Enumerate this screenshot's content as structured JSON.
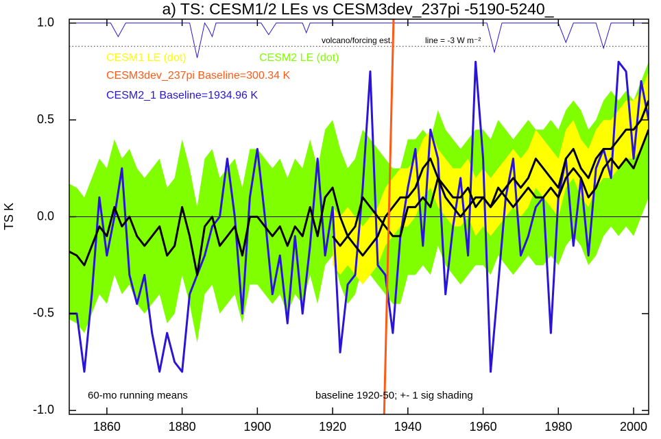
{
  "chart_data": {
    "type": "line",
    "title": "a) TS: CESM1/2 LEs vs CESM3dev_237pi -5190-5240_",
    "y_label": "TS K",
    "legend": "top-left",
    "xlim": [
      1850,
      2004
    ],
    "ylim": [
      -1.02,
      1.02
    ],
    "xticks": [
      1860,
      1880,
      1900,
      1920,
      1940,
      1960,
      1980,
      2000
    ],
    "yticks": [
      {
        "value": 1.0,
        "label": "1.0"
      },
      0.5,
      {
        "value": 0.0,
        "label": "0.0"
      },
      -0.5,
      {
        "value": -1.0,
        "label": "-1.0"
      }
    ],
    "x": [
      1850,
      1852,
      1854,
      1856,
      1858,
      1860,
      1862,
      1864,
      1866,
      1868,
      1870,
      1872,
      1874,
      1876,
      1878,
      1880,
      1882,
      1884,
      1886,
      1888,
      1890,
      1892,
      1894,
      1896,
      1898,
      1900,
      1902,
      1904,
      1906,
      1908,
      1910,
      1912,
      1914,
      1916,
      1918,
      1920,
      1922,
      1924,
      1926,
      1928,
      1930,
      1932,
      1934,
      1936,
      1938,
      1940,
      1942,
      1944,
      1946,
      1948,
      1950,
      1952,
      1954,
      1956,
      1958,
      1960,
      1962,
      1964,
      1966,
      1968,
      1970,
      1972,
      1974,
      1976,
      1978,
      1980,
      1982,
      1984,
      1986,
      1988,
      1990,
      1992,
      1994,
      1996,
      1998,
      2000,
      2002,
      2004
    ],
    "series": [
      {
        "name": "CESM1 LE (dot)",
        "color": "#ffff00",
        "band_color": "#ffff00",
        "x": [
          1920,
          1922,
          1924,
          1926,
          1928,
          1930,
          1932,
          1934,
          1936,
          1938,
          1940,
          1942,
          1944,
          1946,
          1948,
          1950,
          1952,
          1954,
          1956,
          1958,
          1960,
          1962,
          1964,
          1966,
          1968,
          1970,
          1972,
          1974,
          1976,
          1978,
          1980,
          1982,
          1984,
          1986,
          1988,
          1990,
          1992,
          1994,
          1996,
          1998,
          2000,
          2002,
          2004
        ],
        "values": [
          -0.1,
          -0.15,
          -0.1,
          -0.15,
          -0.2,
          -0.15,
          -0.1,
          0.0,
          0.05,
          0.1,
          0.1,
          0.15,
          0.25,
          0.3,
          0.2,
          0.15,
          0.1,
          0.1,
          0.15,
          0.05,
          0.1,
          0.05,
          0.1,
          0.15,
          0.2,
          0.15,
          0.2,
          0.3,
          0.25,
          0.2,
          0.15,
          0.3,
          0.35,
          0.25,
          0.2,
          0.3,
          0.35,
          0.35,
          0.4,
          0.45,
          0.45,
          0.5,
          0.6
        ],
        "upper": [
          0.05,
          0.0,
          0.05,
          0.0,
          -0.05,
          0.0,
          0.05,
          0.15,
          0.2,
          0.25,
          0.25,
          0.3,
          0.4,
          0.45,
          0.35,
          0.3,
          0.25,
          0.25,
          0.3,
          0.2,
          0.25,
          0.2,
          0.25,
          0.3,
          0.35,
          0.3,
          0.35,
          0.45,
          0.4,
          0.35,
          0.3,
          0.45,
          0.5,
          0.4,
          0.35,
          0.45,
          0.5,
          0.5,
          0.55,
          0.6,
          0.6,
          0.65,
          0.75
        ],
        "lower": [
          -0.25,
          -0.3,
          -0.25,
          -0.3,
          -0.35,
          -0.3,
          -0.25,
          -0.15,
          -0.1,
          -0.05,
          -0.05,
          0.0,
          0.1,
          0.15,
          0.05,
          0.0,
          -0.05,
          -0.05,
          0.0,
          -0.1,
          -0.05,
          -0.1,
          -0.05,
          0.0,
          0.05,
          0.0,
          0.05,
          0.15,
          0.1,
          0.05,
          0.0,
          0.15,
          0.2,
          0.1,
          0.05,
          0.15,
          0.2,
          0.2,
          0.25,
          0.3,
          0.3,
          0.35,
          0.45
        ]
      },
      {
        "name": "CESM2 LE (dot)",
        "color": "#80ff00",
        "band_color": "#80ff00",
        "values": [
          -0.18,
          -0.2,
          -0.25,
          -0.15,
          -0.05,
          -0.1,
          0.05,
          -0.05,
          0.0,
          -0.1,
          -0.15,
          -0.1,
          -0.05,
          -0.2,
          -0.15,
          0.05,
          -0.1,
          -0.3,
          -0.05,
          0.0,
          -0.15,
          -0.1,
          -0.05,
          -0.2,
          0.0,
          0.0,
          -0.05,
          -0.1,
          -0.05,
          -0.15,
          -0.05,
          -0.1,
          0.05,
          -0.1,
          0.1,
          0.15,
          0.0,
          -0.1,
          -0.05,
          0.1,
          0.05,
          0.0,
          -0.05,
          -0.1,
          -0.1,
          0.05,
          0.05,
          0.1,
          0.05,
          0.2,
          0.1,
          0.05,
          0.0,
          0.05,
          0.1,
          0.1,
          0.05,
          0.15,
          0.1,
          0.05,
          0.1,
          0.15,
          0.1,
          0.1,
          0.15,
          0.1,
          0.2,
          0.25,
          0.2,
          0.1,
          0.15,
          0.25,
          0.3,
          0.25,
          0.3,
          0.25,
          0.35,
          0.45
        ],
        "upper": [
          0.17,
          0.15,
          0.1,
          0.2,
          0.3,
          0.25,
          0.4,
          0.3,
          0.35,
          0.25,
          0.2,
          0.25,
          0.3,
          0.15,
          0.2,
          0.4,
          0.25,
          0.05,
          0.3,
          0.35,
          0.2,
          0.25,
          0.3,
          0.15,
          0.35,
          0.35,
          0.3,
          0.25,
          0.3,
          0.2,
          0.3,
          0.25,
          0.4,
          0.25,
          0.45,
          0.5,
          0.35,
          0.25,
          0.3,
          0.45,
          0.4,
          0.35,
          0.3,
          0.25,
          0.25,
          0.4,
          0.4,
          0.45,
          0.4,
          0.55,
          0.45,
          0.4,
          0.35,
          0.4,
          0.45,
          0.45,
          0.4,
          0.5,
          0.45,
          0.4,
          0.45,
          0.5,
          0.45,
          0.45,
          0.5,
          0.45,
          0.55,
          0.6,
          0.55,
          0.45,
          0.5,
          0.6,
          0.65,
          0.6,
          0.65,
          0.6,
          0.7,
          0.8
        ],
        "lower": [
          -0.53,
          -0.55,
          -0.6,
          -0.5,
          -0.4,
          -0.45,
          -0.3,
          -0.4,
          -0.35,
          -0.45,
          -0.5,
          -0.45,
          -0.4,
          -0.55,
          -0.5,
          -0.3,
          -0.45,
          -0.65,
          -0.4,
          -0.35,
          -0.5,
          -0.45,
          -0.4,
          -0.55,
          -0.35,
          -0.35,
          -0.4,
          -0.45,
          -0.4,
          -0.5,
          -0.4,
          -0.45,
          -0.3,
          -0.45,
          -0.25,
          -0.2,
          -0.35,
          -0.45,
          -0.4,
          -0.25,
          -0.3,
          -0.35,
          -0.4,
          -0.45,
          -0.45,
          -0.3,
          -0.3,
          -0.25,
          -0.3,
          -0.15,
          -0.25,
          -0.3,
          -0.35,
          -0.3,
          -0.25,
          -0.25,
          -0.3,
          -0.2,
          -0.25,
          -0.3,
          -0.25,
          -0.2,
          -0.25,
          -0.25,
          -0.2,
          -0.25,
          -0.15,
          -0.1,
          -0.15,
          -0.25,
          -0.2,
          -0.1,
          -0.05,
          -0.1,
          -0.05,
          -0.1,
          0.0,
          0.1
        ]
      },
      {
        "name": "CESM3dev_237pi Baseline=300.34 K",
        "color": "#ff5a14",
        "x": [
          1933.7,
          1936.2
        ],
        "values": [
          -1.02,
          1.02
        ]
      },
      {
        "name": "CESM2_1 Baseline=1934.96 K",
        "color": "#2a14d8",
        "values": [
          -0.5,
          -0.5,
          -0.8,
          -0.4,
          0.1,
          -0.2,
          0.0,
          0.25,
          -0.3,
          -0.45,
          -0.3,
          -0.6,
          -0.8,
          -0.6,
          -0.75,
          -0.8,
          -0.4,
          -0.3,
          -0.2,
          -0.05,
          0.0,
          0.3,
          0.0,
          -0.5,
          0.1,
          0.35,
          0.0,
          -0.4,
          -0.2,
          -0.55,
          -0.1,
          -0.5,
          -0.15,
          0.3,
          -0.2,
          0.05,
          -0.7,
          -0.35,
          -0.3,
          0.15,
          0.75,
          -0.25,
          -0.3,
          -0.6,
          -0.1,
          0.15,
          0.35,
          -0.15,
          0.45,
          0.3,
          -0.4,
          -0.05,
          0.2,
          -0.2,
          0.8,
          0.3,
          -0.8,
          -0.35,
          0.1,
          0.3,
          -0.2,
          -0.1,
          0.05,
          0.1,
          -0.6,
          0.1,
          0.3,
          -0.15,
          0.2,
          -0.2,
          0.25,
          0.35,
          0.2,
          0.8,
          0.75,
          0.3,
          0.7,
          0.5
        ]
      }
    ],
    "forcing": {
      "label": "volcano/forcing est.",
      "color": "#2a14d8",
      "x": [
        1850,
        1861,
        1863,
        1865,
        1882,
        1884,
        1886,
        1887,
        1888,
        1889,
        1901,
        1903,
        1905,
        1912,
        1913,
        1914,
        1961,
        1963,
        1965,
        1980,
        1982,
        1984,
        1990,
        1992,
        1994,
        2004
      ],
      "values": [
        1.0,
        1.0,
        0.93,
        1.0,
        1.0,
        0.82,
        1.0,
        0.97,
        0.93,
        1.0,
        1.0,
        0.94,
        1.0,
        1.0,
        0.95,
        1.0,
        1.0,
        0.85,
        1.0,
        1.0,
        0.9,
        1.0,
        1.0,
        0.87,
        1.0,
        1.0
      ]
    },
    "forcing_line": {
      "value": 0.88,
      "label": "line = -3 W m⁻²"
    },
    "annotations": [
      "60-mo running means",
      "baseline 1920-50; +- 1 sig shading"
    ]
  }
}
